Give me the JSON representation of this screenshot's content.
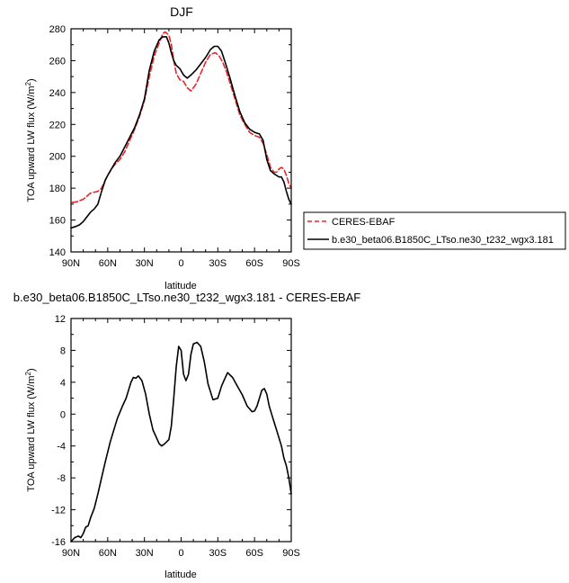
{
  "chart_data": [
    {
      "type": "line",
      "title": "DJF",
      "xlabel": "latitude",
      "ylabel": "TOA upward LW flux (W/m²)",
      "xlim": [
        90,
        -90
      ],
      "ylim": [
        140,
        280
      ],
      "x_ticks": [
        90,
        60,
        30,
        0,
        -30,
        -60,
        -90
      ],
      "x_tick_labels": [
        "90N",
        "60N",
        "30N",
        "0",
        "30S",
        "60S",
        "90S"
      ],
      "y_ticks": [
        140,
        160,
        180,
        200,
        220,
        240,
        260,
        280
      ],
      "y_tick_labels": [
        "140",
        "160",
        "180",
        "200",
        "220",
        "240",
        "260",
        "280"
      ],
      "legend_position": "right",
      "series": [
        {
          "name": "CERES-EBAF",
          "color": "#e8262a",
          "dash": "dashed",
          "x": [
            89,
            85,
            80,
            77,
            74,
            71,
            68,
            65,
            62,
            60,
            57,
            54,
            50,
            46,
            42,
            38,
            34,
            30,
            26,
            22,
            18,
            15,
            13,
            10,
            8,
            6,
            4,
            1,
            -2,
            -5,
            -8,
            -12,
            -16,
            -20,
            -24,
            -28,
            -31,
            -34,
            -37,
            -40,
            -44,
            -48,
            -52,
            -56,
            -60,
            -64,
            -67,
            -70,
            -73,
            -76,
            -78,
            -80,
            -82,
            -84,
            -86,
            -88,
            -90
          ],
          "y": [
            171,
            171.5,
            173,
            175,
            177,
            177.5,
            178,
            180,
            185,
            188,
            192,
            195,
            198,
            203,
            210,
            217,
            225,
            235,
            250,
            263,
            271,
            277,
            278,
            276,
            270,
            260,
            252,
            248,
            247,
            243,
            241,
            245,
            252,
            259,
            264,
            265,
            263,
            259,
            253,
            246,
            236,
            226,
            220,
            215,
            213,
            212,
            208,
            201,
            193,
            190,
            190,
            192,
            193,
            192,
            188,
            183,
            180
          ]
        },
        {
          "name": "b.e30_beta06.B1850C_LTso.ne30_t232_wgx3.181",
          "color": "#000000",
          "dash": "solid",
          "x": [
            90,
            86,
            83,
            80,
            77,
            74,
            71,
            68,
            65,
            62,
            60,
            57,
            54,
            50,
            46,
            42,
            38,
            34,
            30,
            26,
            22,
            18,
            15,
            12,
            10,
            8,
            6,
            4,
            1,
            -2,
            -5,
            -8,
            -12,
            -16,
            -20,
            -24,
            -27,
            -30,
            -33,
            -36,
            -40,
            -44,
            -48,
            -52,
            -56,
            -60,
            -64,
            -67,
            -70,
            -73,
            -76,
            -78,
            -80,
            -82,
            -84,
            -86,
            -88,
            -90
          ],
          "y": [
            155,
            156,
            157,
            159,
            162,
            165,
            167,
            170,
            178,
            185,
            188,
            192,
            196,
            200,
            206,
            212,
            218,
            226,
            236,
            254,
            266,
            273,
            275,
            275,
            271,
            265,
            260,
            257,
            255,
            251,
            249,
            251,
            254,
            258,
            262,
            267,
            269,
            269,
            266,
            259,
            249,
            238,
            228,
            221,
            217,
            215,
            214,
            210,
            198,
            191,
            189,
            188,
            187,
            187,
            184,
            178,
            173,
            170
          ]
        }
      ]
    },
    {
      "type": "line",
      "title": "b.e30_beta06.B1850C_LTso.ne30_t232_wgx3.181 - CERES-EBAF",
      "xlabel": "latitude",
      "ylabel": "TOA upward LW flux (W/m²)",
      "xlim": [
        90,
        -90
      ],
      "ylim": [
        -16,
        12
      ],
      "x_ticks": [
        90,
        60,
        30,
        0,
        -30,
        -60,
        -90
      ],
      "x_tick_labels": [
        "90N",
        "60N",
        "30N",
        "0",
        "30S",
        "60S",
        "90S"
      ],
      "y_ticks": [
        -16,
        -12,
        -8,
        -4,
        0,
        4,
        8,
        12
      ],
      "y_tick_labels": [
        "-16",
        "-12",
        "-8",
        "-4",
        "0",
        "4",
        "8",
        "12"
      ],
      "series": [
        {
          "color": "#000000",
          "dash": "solid",
          "x": [
            90,
            87,
            84,
            82,
            80,
            78,
            76,
            74,
            71,
            68,
            65,
            62,
            58,
            55,
            52,
            48,
            45,
            43,
            41,
            39,
            37,
            35,
            32,
            29,
            26,
            23,
            20,
            18,
            16,
            14,
            12,
            10,
            8,
            6,
            4,
            2,
            0,
            -2,
            -4,
            -6,
            -8,
            -10,
            -13,
            -16,
            -19,
            -22,
            -26,
            -30,
            -33,
            -35,
            -38,
            -42,
            -46,
            -50,
            -54,
            -58,
            -60,
            -62,
            -64,
            -66,
            -68,
            -70,
            -72,
            -74,
            -76,
            -78,
            -80,
            -82,
            -84,
            -86,
            -88,
            -90
          ],
          "y": [
            -16,
            -15.5,
            -15.3,
            -15.5,
            -15,
            -14.2,
            -14,
            -13,
            -11.8,
            -10,
            -8,
            -6,
            -3.5,
            -2,
            -0.5,
            1,
            2,
            3,
            4,
            4.6,
            4.5,
            4.8,
            4.2,
            2.5,
            0,
            -2,
            -3,
            -3.7,
            -4,
            -3.8,
            -3.5,
            -3.2,
            -1.5,
            2,
            6,
            8.5,
            8,
            5,
            4.2,
            5,
            7.5,
            8.8,
            9,
            8.5,
            6.5,
            3.8,
            1.8,
            2,
            3.5,
            4.2,
            5.2,
            4.6,
            3.5,
            2.4,
            1,
            0.3,
            0.4,
            1,
            2,
            3,
            3.2,
            2.5,
            1,
            0,
            -1,
            -2,
            -3,
            -4,
            -5.5,
            -6.5,
            -8,
            -10
          ]
        }
      ]
    }
  ]
}
